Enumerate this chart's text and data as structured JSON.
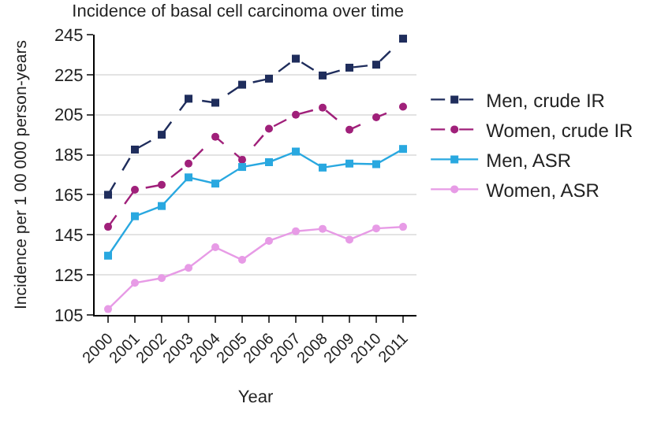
{
  "chart_data": {
    "type": "line",
    "title": "Incidence of basal cell carcinoma over time",
    "xlabel": "Year",
    "ylabel": "Incidence per 1 00 000 person-years",
    "categories": [
      "2000",
      "2001",
      "2002",
      "2003",
      "2004",
      "2005",
      "2006",
      "2007",
      "2008",
      "2009",
      "2010",
      "2011"
    ],
    "series": [
      {
        "name": "Men, crude IR",
        "color": "#1f2d5c",
        "line_style": "dashed",
        "marker": "square",
        "values": [
          165,
          187.6,
          195,
          213,
          211,
          220,
          223,
          233,
          224.6,
          228.5,
          230,
          243
        ]
      },
      {
        "name": "Women, crude IR",
        "color": "#a0207a",
        "line_style": "dashed",
        "marker": "circle",
        "values": [
          149,
          167.5,
          170,
          180.6,
          194,
          182.5,
          198,
          205,
          208.5,
          197.5,
          203.7,
          209
        ]
      },
      {
        "name": "Men, ASR",
        "color": "#29a8e0",
        "line_style": "solid",
        "marker": "square",
        "values": [
          134.6,
          154.3,
          159.4,
          173.7,
          170.6,
          178.9,
          181.3,
          186.6,
          178.6,
          180.6,
          180.3,
          187.9
        ]
      },
      {
        "name": "Women, ASR",
        "color": "#e79be6",
        "line_style": "solid",
        "marker": "circle",
        "values": [
          107.9,
          121,
          123.4,
          128.5,
          138.8,
          132.5,
          142,
          146.8,
          148,
          142.6,
          148.2,
          149
        ]
      }
    ],
    "ylim": [
      105,
      245
    ],
    "yticks": [
      105,
      125,
      145,
      165,
      185,
      205,
      225,
      245
    ],
    "grid": "y",
    "legend": "right"
  }
}
